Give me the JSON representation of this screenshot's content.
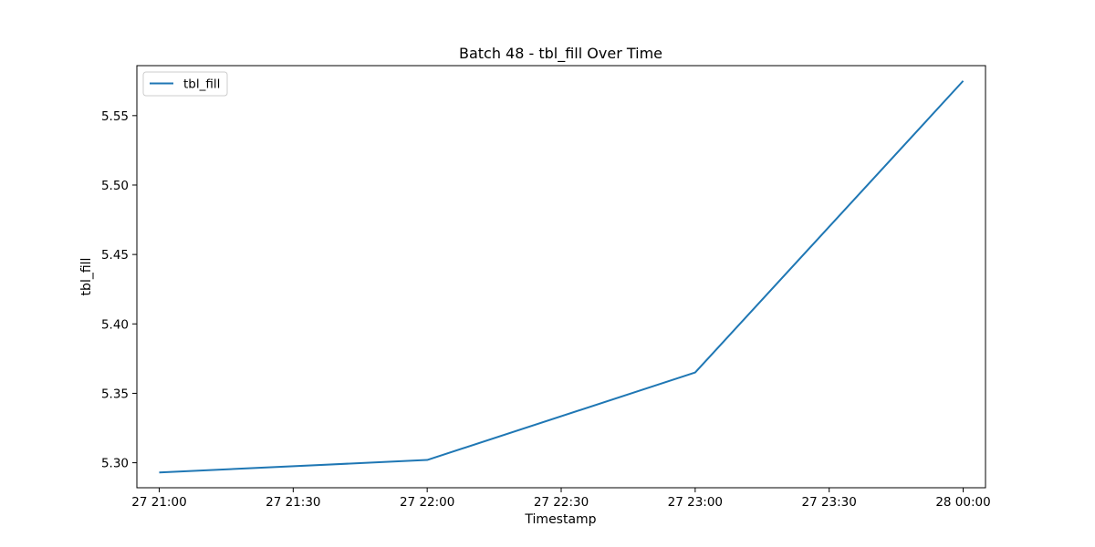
{
  "chart_data": {
    "type": "line",
    "title": "Batch 48 - tbl_fill Over Time",
    "xlabel": "Timestamp",
    "ylabel": "tbl_fill",
    "x_ticks": [
      "27 21:00",
      "27 21:30",
      "27 22:00",
      "27 22:30",
      "27 23:00",
      "27 23:30",
      "28 00:00"
    ],
    "y_ticks": [
      "5.30",
      "5.35",
      "5.40",
      "5.45",
      "5.50",
      "5.55"
    ],
    "series": [
      {
        "name": "tbl_fill",
        "color": "#1f77b4",
        "x": [
          "27 21:00",
          "27 22:00",
          "27 23:00",
          "28 00:00"
        ],
        "values": [
          5.293,
          5.302,
          5.365,
          5.575
        ]
      }
    ],
    "ylim": [
      5.282,
      5.586
    ],
    "xlim": [
      "27 20:55",
      "28 00:05"
    ],
    "grid": false,
    "legend_position": "top-left"
  }
}
